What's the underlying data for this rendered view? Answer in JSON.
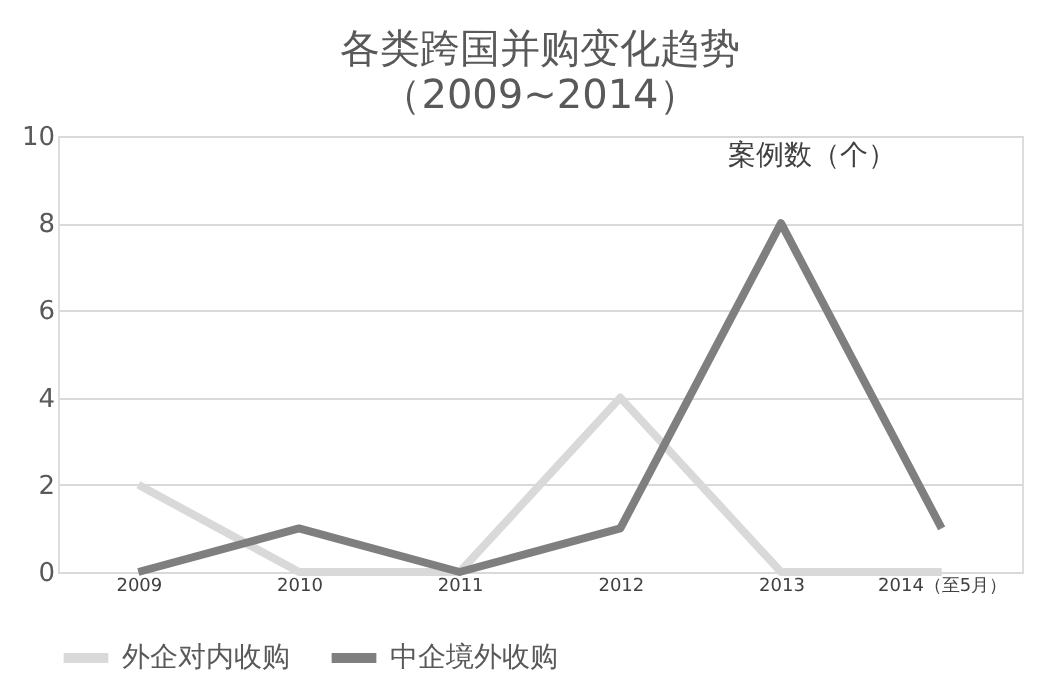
{
  "chart_data": {
    "type": "line",
    "title": "各类跨国并购变化趋势",
    "subtitle": "（2009~2014）",
    "categories": [
      "2009",
      "2010",
      "2011",
      "2012",
      "2013",
      "2014（至5月）"
    ],
    "series": [
      {
        "name": "外企对内收购",
        "color": "#d9d9d9",
        "values": [
          2,
          0,
          0,
          4,
          0,
          0
        ]
      },
      {
        "name": "中企境外收购",
        "color": "#7f7f7f",
        "values": [
          0,
          1,
          0,
          1,
          8,
          1
        ]
      }
    ],
    "ylim": [
      0,
      10
    ],
    "yticks": [
      0,
      2,
      4,
      6,
      8,
      10
    ],
    "grid": "y",
    "legend": "bottom",
    "marker": "none",
    "line_style": "solid",
    "annotations": [
      "案例数（个）"
    ]
  }
}
